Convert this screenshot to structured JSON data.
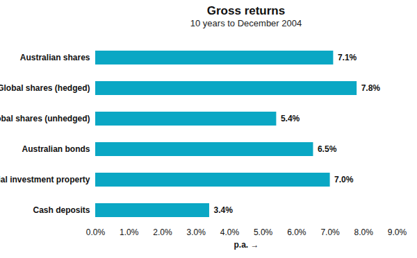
{
  "chart_data": {
    "type": "bar",
    "orientation": "horizontal",
    "title": "Gross returns",
    "subtitle": "10 years to December 2004",
    "xlabel": "p.a.",
    "categories": [
      "Australian shares",
      "Global shares (hedged)",
      "Global shares (unhedged)",
      "Australian bonds",
      "Residential investment property",
      "Cash deposits"
    ],
    "values": [
      7.1,
      7.8,
      5.4,
      6.5,
      7.0,
      3.4
    ],
    "value_labels": [
      "7.1%",
      "7.8%",
      "5.4%",
      "6.5%",
      "7.0%",
      "3.4%"
    ],
    "color": "#0aa7c4",
    "xlim": [
      0,
      9
    ],
    "xticks": [
      {
        "value": 0,
        "label": "0.0%"
      },
      {
        "value": 1,
        "label": "1.0%"
      },
      {
        "value": 2,
        "label": "2.0%"
      },
      {
        "value": 3,
        "label": "3.0%"
      },
      {
        "value": 4,
        "label": "4.0%"
      },
      {
        "value": 5,
        "label": "5.0%"
      },
      {
        "value": 6,
        "label": "6.0%"
      },
      {
        "value": 7,
        "label": "7.0%"
      },
      {
        "value": 8,
        "label": "8.0%"
      },
      {
        "value": 9,
        "label": "9.0%"
      }
    ],
    "grid": false,
    "data_labels": true
  }
}
